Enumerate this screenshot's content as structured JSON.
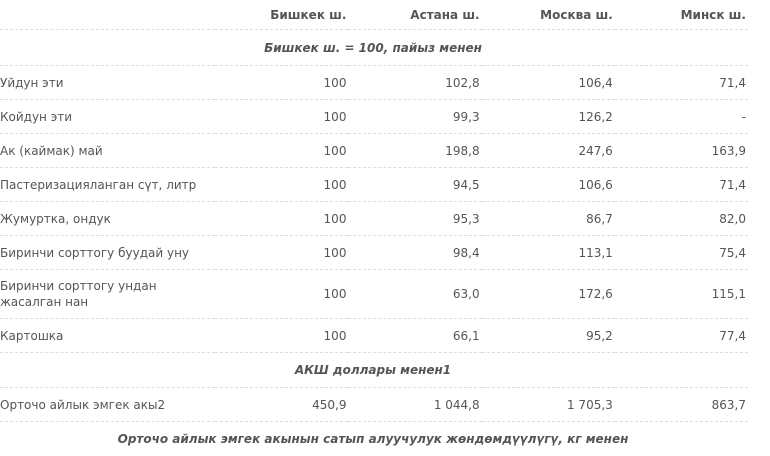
{
  "columns": [
    "",
    "Бишкек ш.",
    "Астана ш.",
    "Москва ш.",
    "Минск ш."
  ],
  "sections": [
    {
      "title": "Бишкек ш. = 100, пайыз менен",
      "rows": [
        {
          "label": "Уйдун эти",
          "values": [
            "100",
            "102,8",
            "106,4",
            "71,4"
          ]
        },
        {
          "label": "Койдун эти",
          "values": [
            "100",
            "99,3",
            "126,2",
            "-"
          ]
        },
        {
          "label": "Ак (каймак) май",
          "values": [
            "100",
            "198,8",
            "247,6",
            "163,9"
          ]
        },
        {
          "label": "Пастеризацияланган сүт, литр",
          "values": [
            "100",
            "94,5",
            "106,6",
            "71,4"
          ]
        },
        {
          "label": "Жумуртка, ондук",
          "values": [
            "100",
            "95,3",
            "86,7",
            "82,0"
          ]
        },
        {
          "label": "Биринчи сорттогу буудай уну",
          "values": [
            "100",
            "98,4",
            "113,1",
            "75,4"
          ]
        },
        {
          "label": "Биринчи сорттогу ундан жасалган нан",
          "values": [
            "100",
            "63,0",
            "172,6",
            "115,1"
          ]
        },
        {
          "label": "Картошка",
          "values": [
            "100",
            "66,1",
            "95,2",
            "77,4"
          ]
        }
      ]
    },
    {
      "title": "АКШ доллары менен1",
      "rows": [
        {
          "label": "Орточо айлык эмгек акы2",
          "values": [
            "450,9",
            "1 044,8",
            "1 705,3",
            "863,7"
          ]
        }
      ]
    },
    {
      "title": "Орточо айлык эмгек акынын сатып алуучулук жөндөмдүүлүгү, кг менен",
      "rows": []
    }
  ]
}
